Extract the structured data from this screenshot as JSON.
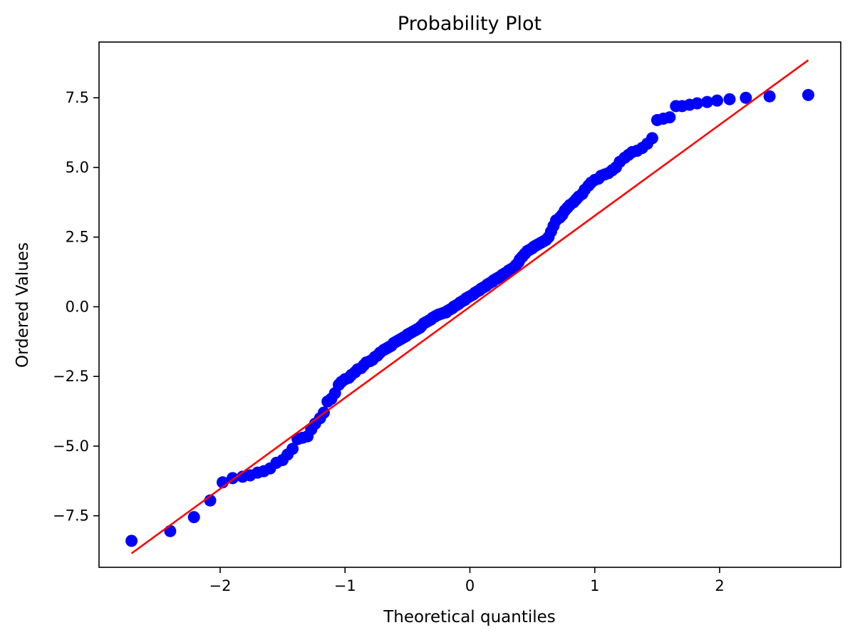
{
  "chart_data": {
    "type": "scatter",
    "title": "Probability Plot",
    "xlabel": "Theoretical quantiles",
    "ylabel": "Ordered Values",
    "xlim": [
      -2.97,
      2.97
    ],
    "ylim": [
      -9.35,
      9.5
    ],
    "xticks": [
      -2,
      -1,
      0,
      1,
      2
    ],
    "xtick_labels": [
      "−2",
      "−1",
      "0",
      "1",
      "2"
    ],
    "yticks": [
      -7.5,
      -5.0,
      -2.5,
      0.0,
      2.5,
      5.0,
      7.5
    ],
    "ytick_labels": [
      "−7.5",
      "−5.0",
      "−2.5",
      "0.0",
      "2.5",
      "5.0",
      "7.5"
    ],
    "grid": false,
    "legend": "none",
    "colors": {
      "points": "#0000ff",
      "fit_line": "#ff0000",
      "axes": "#000000",
      "background": "#ffffff"
    },
    "series": [
      {
        "type": "scatter",
        "x": [
          -2.71,
          -2.4,
          -2.21,
          -2.08,
          -1.98,
          -1.9,
          -1.82,
          -1.76,
          -1.7,
          -1.65,
          -1.6,
          -1.55,
          -1.5,
          -1.46,
          -1.42,
          -1.38,
          -1.34,
          -1.3,
          -1.27,
          -1.24,
          -1.2,
          -1.17,
          -1.14,
          -1.11,
          -1.08,
          -1.05,
          -1.03,
          -1.0,
          -0.97,
          -0.95,
          -0.92,
          -0.9,
          -0.87,
          -0.85,
          -0.83,
          -0.8,
          -0.78,
          -0.76,
          -0.74,
          -0.72,
          -0.69,
          -0.67,
          -0.65,
          -0.63,
          -0.61,
          -0.59,
          -0.57,
          -0.55,
          -0.53,
          -0.51,
          -0.5,
          -0.48,
          -0.46,
          -0.44,
          -0.42,
          -0.4,
          -0.39,
          -0.37,
          -0.35,
          -0.33,
          -0.31,
          -0.3,
          -0.28,
          -0.26,
          -0.25,
          -0.23,
          -0.21,
          -0.19,
          -0.18,
          -0.16,
          -0.14,
          -0.13,
          -0.11,
          -0.09,
          -0.08,
          -0.06,
          -0.04,
          -0.03,
          -0.01,
          0.01,
          0.03,
          0.04,
          0.06,
          0.08,
          0.09,
          0.11,
          0.13,
          0.14,
          0.16,
          0.18,
          0.19,
          0.21,
          0.23,
          0.25,
          0.26,
          0.28,
          0.3,
          0.31,
          0.33,
          0.35,
          0.37,
          0.39,
          0.4,
          0.42,
          0.44,
          0.46,
          0.48,
          0.5,
          0.51,
          0.53,
          0.55,
          0.57,
          0.59,
          0.61,
          0.63,
          0.65,
          0.67,
          0.69,
          0.72,
          0.74,
          0.76,
          0.78,
          0.8,
          0.83,
          0.85,
          0.87,
          0.9,
          0.92,
          0.95,
          0.97,
          1.0,
          1.03,
          1.05,
          1.08,
          1.11,
          1.14,
          1.17,
          1.2,
          1.24,
          1.27,
          1.3,
          1.34,
          1.38,
          1.42,
          1.46,
          1.5,
          1.55,
          1.6,
          1.65,
          1.7,
          1.76,
          1.82,
          1.9,
          1.98,
          2.08,
          2.21,
          2.4,
          2.71
        ],
        "y": [
          -8.4,
          -8.05,
          -7.55,
          -6.95,
          -6.3,
          -6.15,
          -6.1,
          -6.05,
          -5.95,
          -5.9,
          -5.8,
          -5.6,
          -5.5,
          -5.3,
          -5.1,
          -4.75,
          -4.7,
          -4.65,
          -4.4,
          -4.2,
          -4.0,
          -3.8,
          -3.4,
          -3.3,
          -3.1,
          -2.8,
          -2.7,
          -2.6,
          -2.55,
          -2.45,
          -2.35,
          -2.25,
          -2.2,
          -2.1,
          -2.0,
          -1.95,
          -1.9,
          -1.8,
          -1.75,
          -1.65,
          -1.55,
          -1.5,
          -1.45,
          -1.4,
          -1.3,
          -1.25,
          -1.2,
          -1.15,
          -1.1,
          -1.05,
          -1.0,
          -0.95,
          -0.9,
          -0.85,
          -0.8,
          -0.75,
          -0.7,
          -0.6,
          -0.55,
          -0.5,
          -0.45,
          -0.4,
          -0.35,
          -0.3,
          -0.28,
          -0.25,
          -0.22,
          -0.2,
          -0.15,
          -0.1,
          -0.05,
          0.0,
          0.05,
          0.1,
          0.15,
          0.2,
          0.25,
          0.3,
          0.35,
          0.4,
          0.45,
          0.5,
          0.55,
          0.6,
          0.65,
          0.7,
          0.75,
          0.8,
          0.85,
          0.9,
          0.95,
          1.0,
          1.05,
          1.1,
          1.15,
          1.2,
          1.25,
          1.3,
          1.35,
          1.4,
          1.5,
          1.6,
          1.7,
          1.8,
          1.9,
          2.0,
          2.05,
          2.1,
          2.15,
          2.2,
          2.25,
          2.3,
          2.35,
          2.4,
          2.5,
          2.7,
          2.9,
          3.1,
          3.2,
          3.3,
          3.45,
          3.55,
          3.65,
          3.75,
          3.85,
          3.95,
          4.05,
          4.2,
          4.35,
          4.45,
          4.55,
          4.6,
          4.7,
          4.75,
          4.8,
          4.9,
          5.0,
          5.2,
          5.35,
          5.45,
          5.55,
          5.6,
          5.7,
          5.85,
          6.05,
          6.7,
          6.75,
          6.8,
          7.2,
          7.2,
          7.25,
          7.3,
          7.35,
          7.4,
          7.45,
          7.5,
          7.55,
          7.6
        ]
      },
      {
        "type": "line",
        "x": [
          -2.71,
          2.71
        ],
        "y": [
          -8.85,
          8.85
        ]
      }
    ]
  }
}
